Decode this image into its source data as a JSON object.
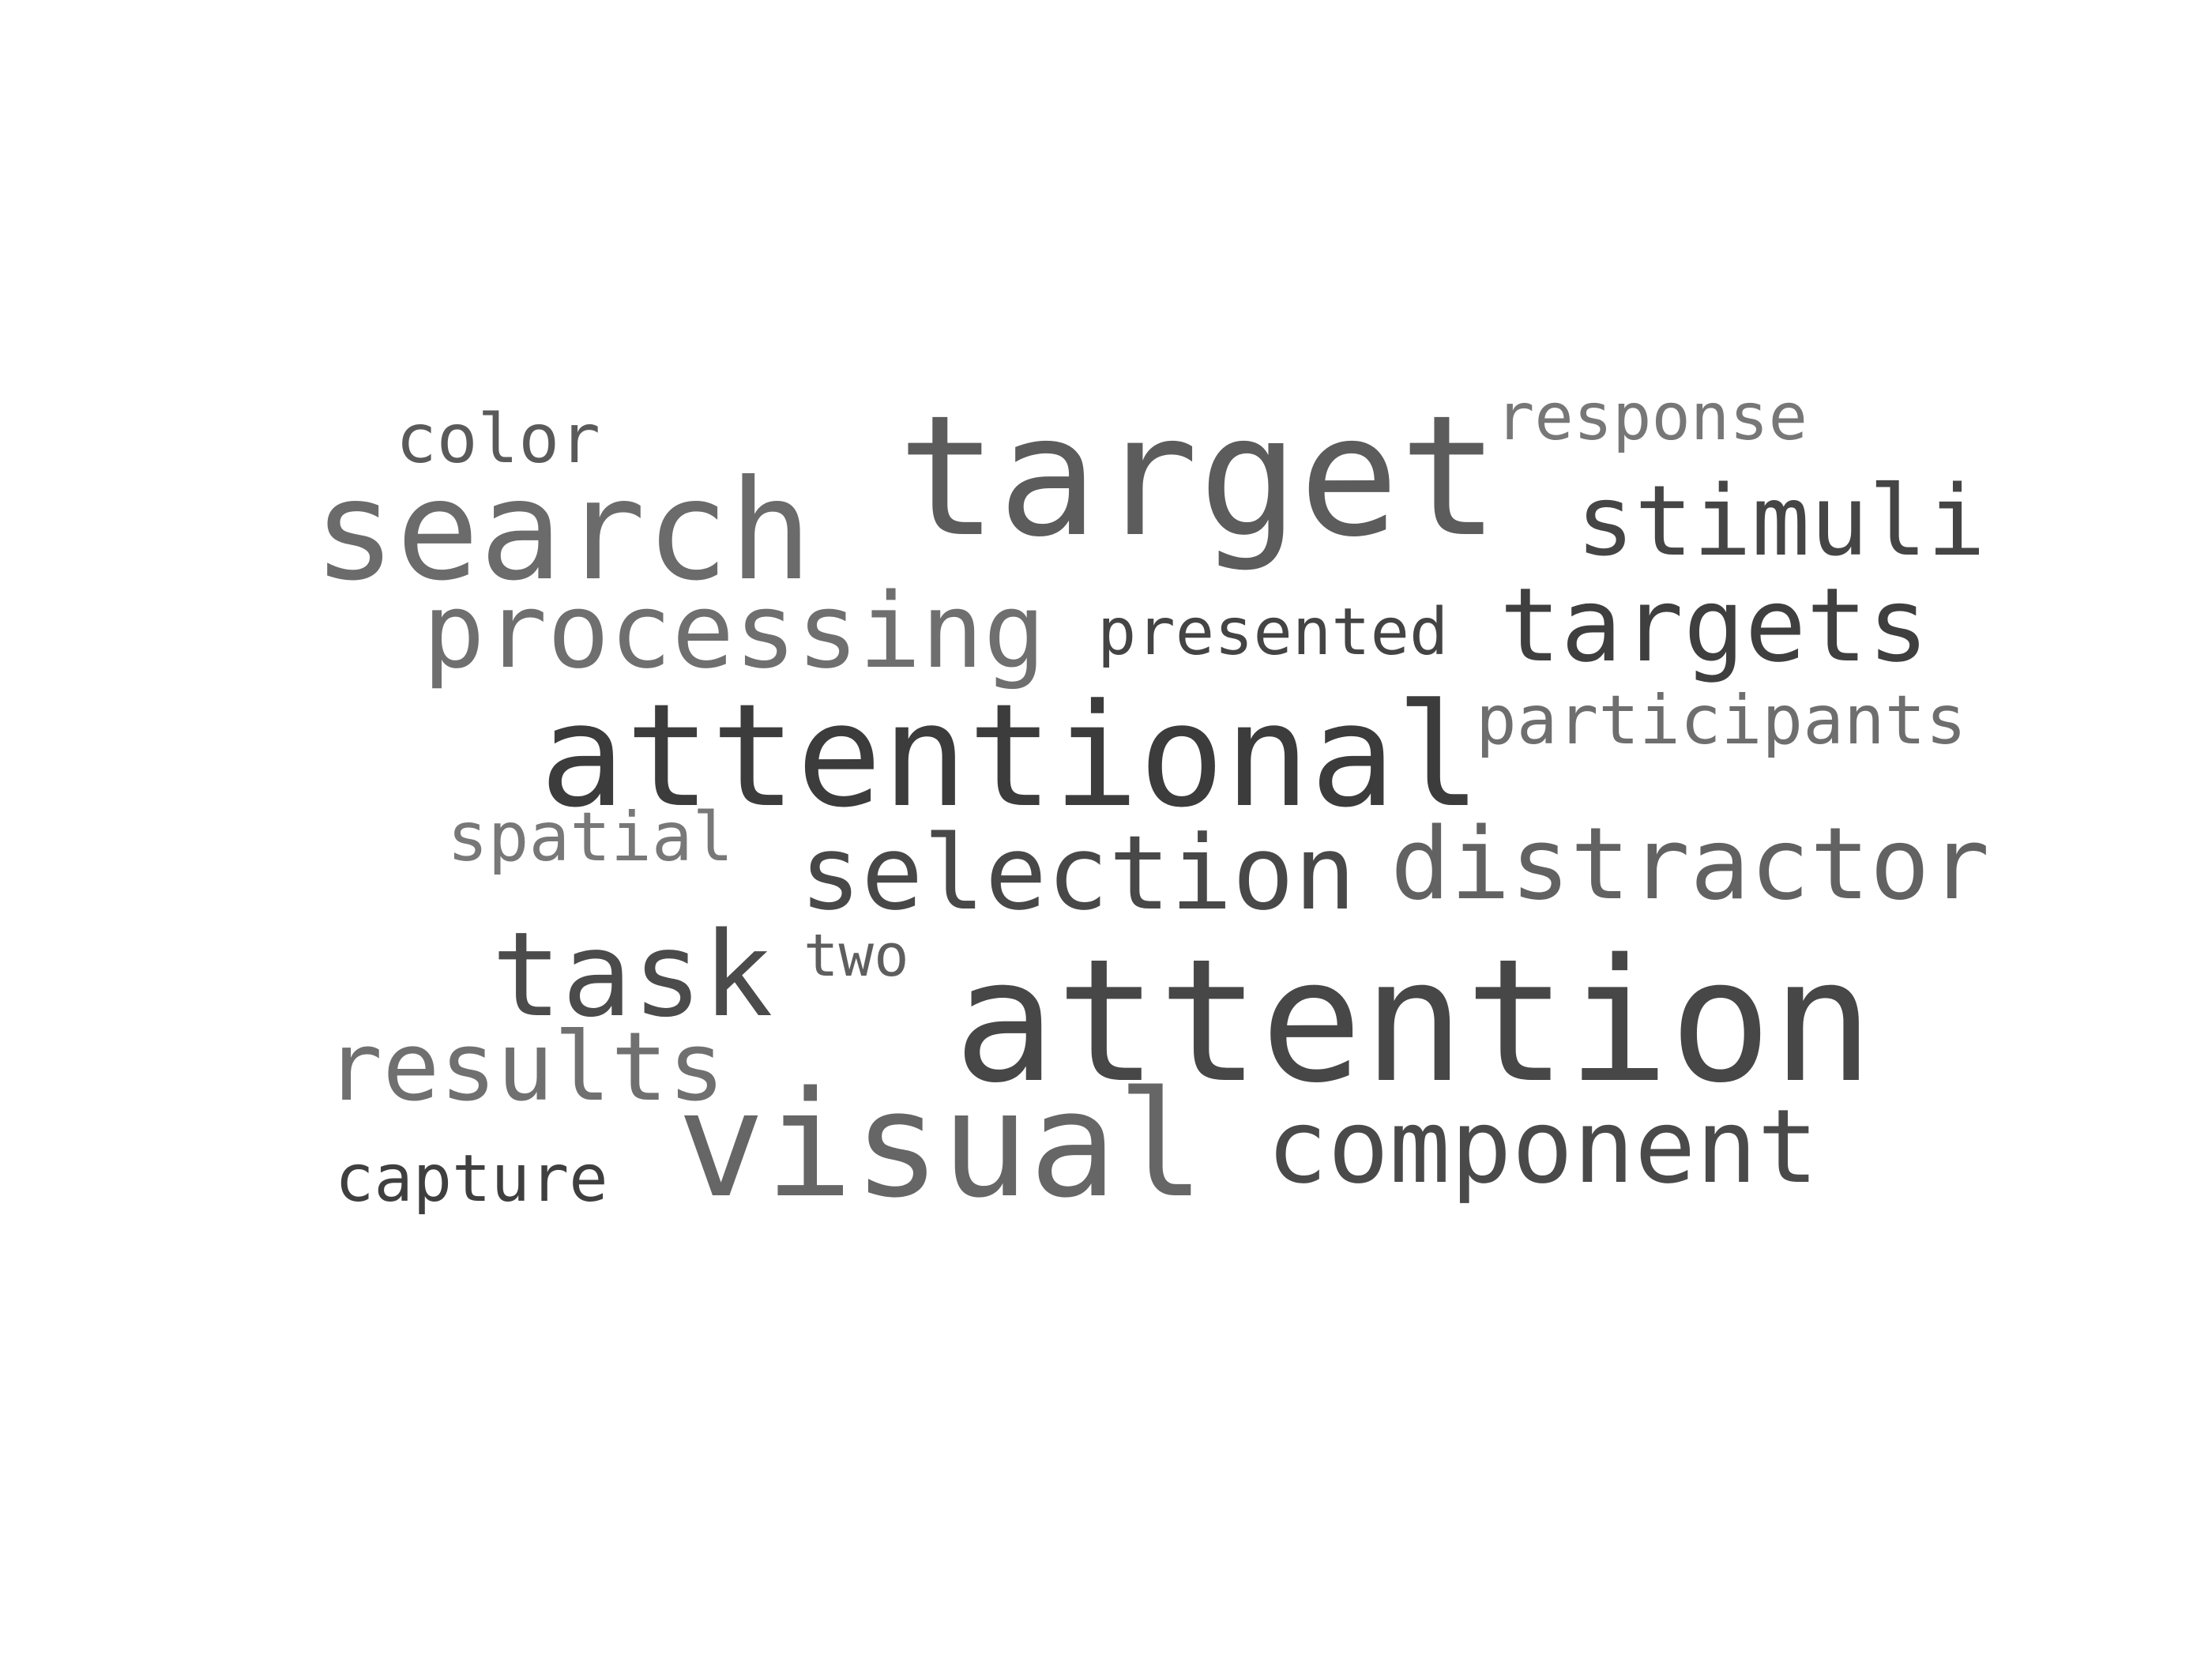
{
  "word_cloud": {
    "words": [
      {
        "text": "color",
        "color": "#5a5a5a"
      },
      {
        "text": "target",
        "color": "#5c5c5c"
      },
      {
        "text": "response",
        "color": "#777777"
      },
      {
        "text": "search",
        "color": "#6b6b6b"
      },
      {
        "text": "stimuli",
        "color": "#454545"
      },
      {
        "text": "processing",
        "color": "#6f6f6f"
      },
      {
        "text": "presented",
        "color": "#444444"
      },
      {
        "text": "targets",
        "color": "#3f3f3f"
      },
      {
        "text": "attentional",
        "color": "#3c3c3c"
      },
      {
        "text": "participants",
        "color": "#6e6e6e"
      },
      {
        "text": "spatial",
        "color": "#787878"
      },
      {
        "text": "selection",
        "color": "#484848"
      },
      {
        "text": "distractor",
        "color": "#626262"
      },
      {
        "text": "task",
        "color": "#4b4b4b"
      },
      {
        "text": "two",
        "color": "#5e5e5e"
      },
      {
        "text": "attention",
        "color": "#474747"
      },
      {
        "text": "results",
        "color": "#707070"
      },
      {
        "text": "visual",
        "color": "#666666"
      },
      {
        "text": "component",
        "color": "#4a4a4a"
      },
      {
        "text": "capture",
        "color": "#3f3f3f"
      }
    ]
  }
}
